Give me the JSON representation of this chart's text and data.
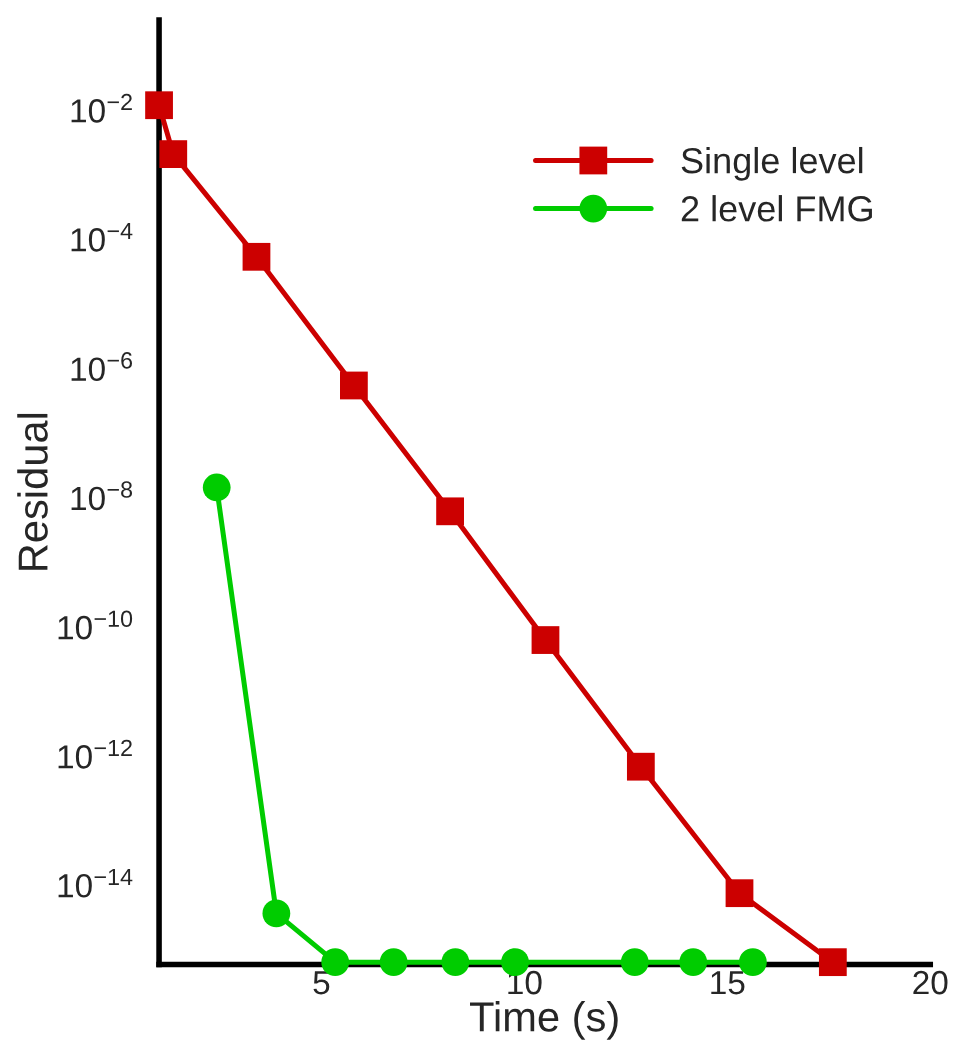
{
  "chart_data": {
    "type": "line",
    "xlabel": "Time (s)",
    "ylabel": "Residual",
    "log": "y",
    "xlim": [
      1,
      20
    ],
    "xticks": [
      5,
      10,
      15,
      20
    ],
    "ylim": [
      6e-16,
      0.25
    ],
    "yticks": [
      {
        "value": 1e-14,
        "label": "10$^{−14}$"
      },
      {
        "value": 1e-12,
        "label": "10$^{−12}$"
      },
      {
        "value": 1e-10,
        "label": "10$^{−10}$"
      },
      {
        "value": 1e-08,
        "label": "10$^{−8}$"
      },
      {
        "value": 1e-06,
        "label": "10$^{−6}$"
      },
      {
        "value": 0.0001,
        "label": "10$^{−4}$"
      },
      {
        "value": 0.01,
        "label": "10$^{−2}$"
      }
    ],
    "legend": "top right",
    "grid": false,
    "series": [
      {
        "name": "Single level",
        "color": "#cc0000",
        "marker": "square",
        "x": [
          1,
          1.35,
          3.4,
          5.8,
          8.17,
          10.52,
          12.87,
          15.3,
          17.6
        ],
        "values": [
          0.012,
          0.0021,
          5.4e-05,
          5.5e-07,
          6.2e-09,
          6.3e-11,
          6.9e-13,
          7.6e-15,
          6.5e-16
        ]
      },
      {
        "name": "2 level FMG",
        "color": "#00cc00",
        "marker": "circle",
        "x": [
          2.42,
          3.89,
          5.34,
          6.78,
          8.3,
          9.77,
          12.72,
          14.16,
          15.63
        ],
        "values": [
          1.45e-08,
          3.7e-15,
          6.5e-16,
          6.5e-16,
          6.5e-16,
          6.5e-16,
          6.5e-16,
          6.5e-16,
          6.5e-16
        ]
      }
    ]
  }
}
